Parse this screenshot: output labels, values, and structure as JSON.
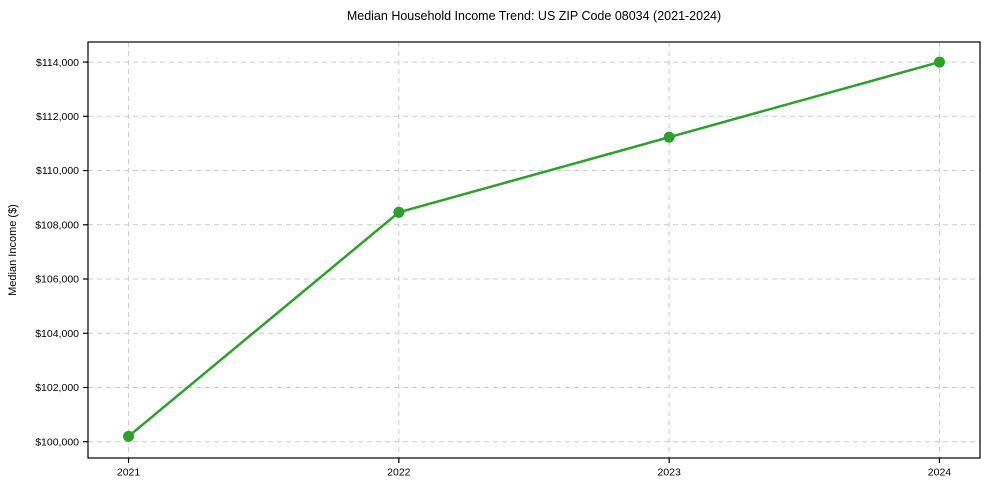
{
  "chart_data": {
    "type": "line",
    "title": "Median Household Income Trend: US ZIP Code 08034 (2021-2024)",
    "xlabel": "",
    "ylabel": "Median Income ($)",
    "x": [
      2021,
      2022,
      2023,
      2024
    ],
    "x_tick_labels": [
      "2021",
      "2022",
      "2023",
      "2024"
    ],
    "values": [
      100200,
      108460,
      111230,
      114000
    ],
    "y_ticks": [
      100000,
      102000,
      104000,
      106000,
      108000,
      110000,
      112000,
      114000
    ],
    "y_tick_labels": [
      "$100,000",
      "$102,000",
      "$104,000",
      "$106,000",
      "$108,000",
      "$110,000",
      "$112,000",
      "$114,000"
    ],
    "xlim": [
      2020.85,
      2024.15
    ],
    "ylim": [
      99400,
      114740
    ],
    "grid": true,
    "grid_style": "dashed",
    "legend_position": "none",
    "colors": {
      "line": "#2ca02c",
      "marker": "#2ca02c",
      "grid": "#cccccc",
      "axis": "#000000",
      "background": "#ffffff",
      "text": "#000000"
    }
  }
}
